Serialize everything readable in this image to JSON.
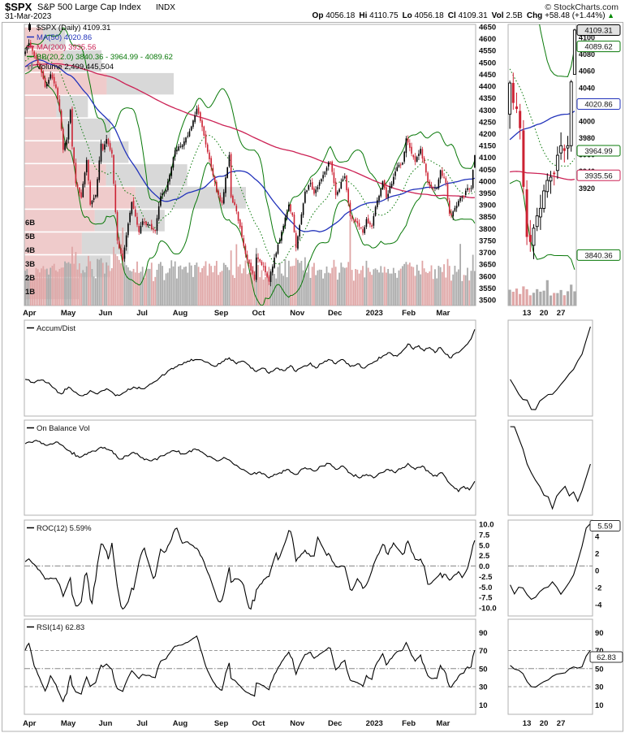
{
  "header": {
    "symbol": "$SPX",
    "name": "S&P 500 Large Cap Index",
    "exchange": "INDX",
    "copyright": "© StockCharts.com",
    "date": "31-Mar-2023",
    "quote": [
      {
        "label": "Op",
        "value": "4056.18"
      },
      {
        "label": "Hi",
        "value": "4110.75"
      },
      {
        "label": "Lo",
        "value": "4056.18"
      },
      {
        "label": "Cl",
        "value": "4109.31"
      },
      {
        "label": "Vol",
        "value": "2.5B"
      },
      {
        "label": "Chg",
        "value": "+58.48 (+1.44%)"
      }
    ],
    "arrow": "▲"
  },
  "colors": {
    "up": "#000000",
    "down": "#cc2233",
    "ma50": "#2233bb",
    "ma200": "#cc2255",
    "bb": "#087808",
    "vol_up": "#ababab",
    "vol_down": "#dfa6a6",
    "vbp_gray": "#b8b8b8",
    "vbp_pink": "#e2a0a0",
    "indicator": "#000000",
    "frame": "#b0b0b0",
    "ref_dash": "#888888",
    "box_last_fill": "#e2e2e2"
  },
  "chart_data": {
    "type": "candlestick",
    "symbol": "$SPX",
    "timeframe": "Daily",
    "last_ohlc": {
      "open": 4056.18,
      "high": 4110.75,
      "low": 4056.18,
      "close": 4109.31,
      "volume_b": 2.499
    },
    "volume_label": "Volume 2,499,445,504",
    "price_axis": {
      "min": 3500,
      "max": 4650,
      "step": 50
    },
    "mini_axis": {
      "min": 3920,
      "max": 4100,
      "step": 20
    },
    "volume_axis_ticks": [
      "6B",
      "5B",
      "4B",
      "3B",
      "2B",
      "1B"
    ],
    "months": [
      {
        "label": "Apr",
        "day": 0
      },
      {
        "label": "May",
        "day": 21
      },
      {
        "label": "Jun",
        "day": 42
      },
      {
        "label": "Jul",
        "day": 63
      },
      {
        "label": "Aug",
        "day": 83
      },
      {
        "label": "Sep",
        "day": 106
      },
      {
        "label": "Oct",
        "day": 127
      },
      {
        "label": "Nov",
        "day": 148
      },
      {
        "label": "Dec",
        "day": 169
      },
      {
        "label": "2023",
        "day": 190
      },
      {
        "label": "Feb",
        "day": 210
      },
      {
        "label": "Mar",
        "day": 229
      }
    ],
    "mini_x_ticks": [
      {
        "label": "13",
        "day": 235
      },
      {
        "label": "20",
        "day": 240
      },
      {
        "label": "27",
        "day": 245
      }
    ],
    "price_keyframes": [
      [
        -200,
        4300
      ],
      [
        -170,
        4450
      ],
      [
        -140,
        4560
      ],
      [
        -110,
        4790
      ],
      [
        -90,
        4480
      ],
      [
        -70,
        4350
      ],
      [
        -55,
        4170
      ],
      [
        -45,
        4350
      ],
      [
        -38,
        4620
      ],
      [
        -25,
        4420
      ],
      [
        -12,
        4500
      ],
      [
        -1,
        4540
      ],
      [
        0,
        4546
      ],
      [
        2,
        4582
      ],
      [
        8,
        4480
      ],
      [
        11,
        4397
      ],
      [
        14,
        4450
      ],
      [
        17,
        4393
      ],
      [
        19,
        4296
      ],
      [
        21,
        4132
      ],
      [
        23,
        4175
      ],
      [
        25,
        4300
      ],
      [
        26,
        4146
      ],
      [
        28,
        3991
      ],
      [
        31,
        3930
      ],
      [
        34,
        4089
      ],
      [
        36,
        3901
      ],
      [
        39,
        3941
      ],
      [
        42,
        4158
      ],
      [
        43,
        4132
      ],
      [
        45,
        4177
      ],
      [
        48,
        4116
      ],
      [
        51,
        3750
      ],
      [
        54,
        3667
      ],
      [
        59,
        3912
      ],
      [
        63,
        3785
      ],
      [
        65,
        3831
      ],
      [
        72,
        3790
      ],
      [
        75,
        3937
      ],
      [
        78,
        3962
      ],
      [
        83,
        4130
      ],
      [
        87,
        4152
      ],
      [
        91,
        4210
      ],
      [
        95,
        4305
      ],
      [
        98,
        4228
      ],
      [
        103,
        4058
      ],
      [
        106,
        3955
      ],
      [
        109,
        3908
      ],
      [
        113,
        4110
      ],
      [
        114,
        3933
      ],
      [
        117,
        3873
      ],
      [
        122,
        3693
      ],
      [
        127,
        3586
      ],
      [
        128,
        3678
      ],
      [
        132,
        3640
      ],
      [
        135,
        3577
      ],
      [
        138,
        3678
      ],
      [
        141,
        3753
      ],
      [
        146,
        3901
      ],
      [
        147,
        3872
      ],
      [
        148,
        3856
      ],
      [
        150,
        3720
      ],
      [
        155,
        3956
      ],
      [
        158,
        3992
      ],
      [
        160,
        3947
      ],
      [
        165,
        4026
      ],
      [
        168,
        4080
      ],
      [
        169,
        4077
      ],
      [
        172,
        3941
      ],
      [
        177,
        4020
      ],
      [
        180,
        3852
      ],
      [
        184,
        3822
      ],
      [
        187,
        3783
      ],
      [
        189,
        3840
      ],
      [
        192,
        3808
      ],
      [
        194,
        3892
      ],
      [
        198,
        3999
      ],
      [
        200,
        3929
      ],
      [
        206,
        4060
      ],
      [
        209,
        4077
      ],
      [
        211,
        4180
      ],
      [
        216,
        4081
      ],
      [
        219,
        4136
      ],
      [
        223,
        3997
      ],
      [
        226,
        3970
      ],
      [
        228,
        3970
      ],
      [
        230,
        4046
      ],
      [
        233,
        3992
      ],
      [
        235,
        3862
      ],
      [
        236,
        3856
      ],
      [
        240,
        3917
      ],
      [
        243,
        3937
      ],
      [
        245,
        3971
      ],
      [
        247,
        3971
      ],
      [
        249,
        4109.31
      ]
    ],
    "volume_spike_days": [
      54,
      117,
      180,
      241
    ],
    "volume_profile": [
      {
        "lo": 4554,
        "hi": 4650,
        "w": 0.09,
        "pw": 0.45
      },
      {
        "lo": 4458,
        "hi": 4554,
        "w": 0.17,
        "pw": 0.5
      },
      {
        "lo": 4362,
        "hi": 4458,
        "w": 0.33,
        "pw": 0.55
      },
      {
        "lo": 4266,
        "hi": 4362,
        "w": 0.14,
        "pw": 0.5
      },
      {
        "lo": 4170,
        "hi": 4266,
        "w": 0.19,
        "pw": 0.45
      },
      {
        "lo": 4074,
        "hi": 4170,
        "w": 0.23,
        "pw": 0.45
      },
      {
        "lo": 3978,
        "hi": 4074,
        "w": 0.36,
        "pw": 0.5
      },
      {
        "lo": 3882,
        "hi": 3978,
        "w": 0.49,
        "pw": 0.5
      },
      {
        "lo": 3786,
        "hi": 3882,
        "w": 0.31,
        "pw": 0.5
      },
      {
        "lo": 3690,
        "hi": 3786,
        "w": 0.23,
        "pw": 0.55
      },
      {
        "lo": 3594,
        "hi": 3690,
        "w": 0.19,
        "pw": 0.6
      },
      {
        "lo": 3500,
        "hi": 3594,
        "w": 0.12,
        "pw": 0.5
      }
    ],
    "indicators": {
      "ma50": {
        "period": 50,
        "last": 4020.86
      },
      "ma200": {
        "period": 200,
        "last": 3935.56
      },
      "bollinger": {
        "period": 20,
        "mult": 2.0,
        "last_lower": 3840.36,
        "last_mid": 3964.99,
        "last_upper": 4089.62
      }
    },
    "legend": [
      {
        "icon": "candle",
        "text": "$SPX (Daily) 4109.31",
        "color": "#000000"
      },
      {
        "icon": "line",
        "text": "MA(50) 4020.86",
        "color": "#2233bb"
      },
      {
        "icon": "line",
        "text": "MA(200) 3935.56",
        "color": "#cc2255"
      },
      {
        "icon": "line",
        "text": "BB(20,2.0) 3840.36 - 3964.99 - 4089.62",
        "color": "#087808"
      },
      {
        "icon": "bars",
        "text": "Volume 2,499,445,504",
        "color": "#000000"
      }
    ],
    "panels": {
      "accum": {
        "label": "Accum/Dist",
        "keyframes": [
          [
            0,
            37
          ],
          [
            5,
            33
          ],
          [
            10,
            36
          ],
          [
            15,
            28
          ],
          [
            20,
            20
          ],
          [
            24,
            28
          ],
          [
            28,
            22
          ],
          [
            32,
            18
          ],
          [
            36,
            24
          ],
          [
            40,
            20
          ],
          [
            45,
            26
          ],
          [
            50,
            18
          ],
          [
            55,
            22
          ],
          [
            60,
            28
          ],
          [
            65,
            26
          ],
          [
            70,
            32
          ],
          [
            75,
            40
          ],
          [
            80,
            48
          ],
          [
            85,
            54
          ],
          [
            90,
            58
          ],
          [
            95,
            60
          ],
          [
            100,
            57
          ],
          [
            105,
            52
          ],
          [
            110,
            58
          ],
          [
            113,
            62
          ],
          [
            117,
            55
          ],
          [
            121,
            58
          ],
          [
            125,
            50
          ],
          [
            128,
            46
          ],
          [
            132,
            50
          ],
          [
            135,
            44
          ],
          [
            139,
            50
          ],
          [
            143,
            47
          ],
          [
            147,
            53
          ],
          [
            150,
            46
          ],
          [
            154,
            52
          ],
          [
            158,
            56
          ],
          [
            161,
            50
          ],
          [
            165,
            56
          ],
          [
            168,
            60
          ],
          [
            172,
            55
          ],
          [
            176,
            60
          ],
          [
            180,
            52
          ],
          [
            184,
            55
          ],
          [
            187,
            50
          ],
          [
            190,
            54
          ],
          [
            194,
            58
          ],
          [
            198,
            64
          ],
          [
            202,
            68
          ],
          [
            206,
            64
          ],
          [
            209,
            70
          ],
          [
            212,
            78
          ],
          [
            215,
            72
          ],
          [
            218,
            76
          ],
          [
            221,
            70
          ],
          [
            224,
            74
          ],
          [
            227,
            68
          ],
          [
            230,
            74
          ],
          [
            233,
            66
          ],
          [
            236,
            62
          ],
          [
            239,
            68
          ],
          [
            242,
            72
          ],
          [
            245,
            78
          ],
          [
            247,
            84
          ],
          [
            249,
            95
          ]
        ]
      },
      "obv": {
        "label": "On Balance Vol",
        "keyframes": [
          [
            0,
            78
          ],
          [
            6,
            82
          ],
          [
            12,
            76
          ],
          [
            18,
            80
          ],
          [
            24,
            70
          ],
          [
            30,
            62
          ],
          [
            36,
            68
          ],
          [
            42,
            74
          ],
          [
            48,
            70
          ],
          [
            52,
            60
          ],
          [
            56,
            64
          ],
          [
            60,
            68
          ],
          [
            64,
            62
          ],
          [
            70,
            58
          ],
          [
            76,
            64
          ],
          [
            82,
            70
          ],
          [
            88,
            66
          ],
          [
            94,
            72
          ],
          [
            100,
            65
          ],
          [
            106,
            58
          ],
          [
            110,
            62
          ],
          [
            115,
            55
          ],
          [
            120,
            48
          ],
          [
            125,
            42
          ],
          [
            130,
            45
          ],
          [
            135,
            38
          ],
          [
            140,
            43
          ],
          [
            145,
            48
          ],
          [
            150,
            42
          ],
          [
            155,
            50
          ],
          [
            160,
            46
          ],
          [
            165,
            52
          ],
          [
            168,
            55
          ],
          [
            172,
            48
          ],
          [
            176,
            52
          ],
          [
            181,
            42
          ],
          [
            185,
            38
          ],
          [
            189,
            42
          ],
          [
            193,
            38
          ],
          [
            197,
            44
          ],
          [
            201,
            48
          ],
          [
            205,
            44
          ],
          [
            209,
            50
          ],
          [
            212,
            55
          ],
          [
            216,
            48
          ],
          [
            220,
            52
          ],
          [
            224,
            44
          ],
          [
            228,
            40
          ],
          [
            231,
            44
          ],
          [
            234,
            34
          ],
          [
            237,
            28
          ],
          [
            240,
            22
          ],
          [
            243,
            28
          ],
          [
            246,
            24
          ],
          [
            249,
            34
          ]
        ]
      },
      "roc": {
        "label": "ROC(12) 5.59%",
        "period": 12,
        "last": 5.59,
        "ticks": [
          "10.0",
          "7.5",
          "5.0",
          "2.5",
          "0.0",
          "-2.5",
          "-5.0",
          "-7.5",
          "-10.0"
        ],
        "mini_ticks": [
          "4",
          "2",
          "0",
          "-2",
          "-4"
        ]
      },
      "rsi": {
        "label": "RSI(14) 62.83",
        "period": 14,
        "last": 62.83,
        "ticks": [
          "90",
          "70",
          "50",
          "30",
          "10"
        ],
        "ref_lines": [
          70,
          50,
          30
        ]
      }
    },
    "price_boxes": [
      {
        "text": "4109.31",
        "value": 4109.31,
        "border": "#000000",
        "fill": "#e2e2e2"
      },
      {
        "text": "4089.62",
        "value": 4089.62,
        "border": "#087808",
        "fill": "#ffffff"
      },
      {
        "text": "4020.86",
        "value": 4020.86,
        "border": "#2233bb",
        "fill": "#ffffff"
      },
      {
        "text": "3964.99",
        "value": 3964.99,
        "border": "#087808",
        "fill": "#ffffff"
      },
      {
        "text": "3935.56",
        "value": 3935.56,
        "border": "#cc2255",
        "fill": "#ffffff"
      },
      {
        "text": "3840.36",
        "value": 3840.36,
        "border": "#087808",
        "fill": "#ffffff"
      }
    ],
    "roc_box": {
      "text": "5.59",
      "value": 5.59
    },
    "rsi_box": {
      "text": "62.83",
      "value": 62.83
    }
  }
}
